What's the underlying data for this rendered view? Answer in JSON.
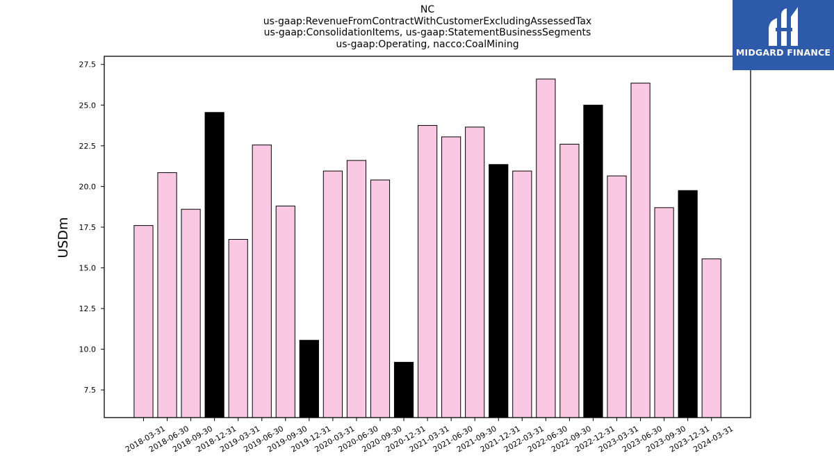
{
  "chart_data": {
    "type": "bar",
    "title_lines": [
      "NC",
      "us-gaap:RevenueFromContractWithCustomerExcludingAssessedTax",
      "us-gaap:ConsolidationItems, us-gaap:StatementBusinessSegments",
      "us-gaap:Operating, nacco:CoalMining"
    ],
    "ylabel": "USDm",
    "xlabel": "",
    "ylim": [
      5.8,
      28.0
    ],
    "yticks": [
      7.5,
      10.0,
      12.5,
      15.0,
      17.5,
      20.0,
      22.5,
      25.0,
      27.5
    ],
    "grid": false,
    "categories": [
      "2018-03-31",
      "2018-06-30",
      "2018-09-30",
      "2018-12-31",
      "2019-03-31",
      "2019-06-30",
      "2019-09-30",
      "2019-12-31",
      "2020-03-31",
      "2020-06-30",
      "2020-09-30",
      "2020-12-31",
      "2021-03-31",
      "2021-06-30",
      "2021-09-30",
      "2021-12-31",
      "2022-03-31",
      "2022-06-30",
      "2022-09-30",
      "2022-12-31",
      "2023-03-31",
      "2023-06-30",
      "2023-09-30",
      "2023-12-31",
      "2024-03-31"
    ],
    "values": [
      17.6,
      20.85,
      18.6,
      24.55,
      16.75,
      22.55,
      18.8,
      10.55,
      20.95,
      21.6,
      20.4,
      9.2,
      23.75,
      23.05,
      23.65,
      21.35,
      20.95,
      26.6,
      22.6,
      25.0,
      20.65,
      26.35,
      18.7,
      19.75,
      15.55
    ],
    "colors": {
      "quarter": "#fbc8e3",
      "year_end": "#000000",
      "edge": "#000000"
    },
    "bar_kinds": [
      "quarter",
      "quarter",
      "quarter",
      "year_end",
      "quarter",
      "quarter",
      "quarter",
      "year_end",
      "quarter",
      "quarter",
      "quarter",
      "year_end",
      "quarter",
      "quarter",
      "quarter",
      "year_end",
      "quarter",
      "quarter",
      "quarter",
      "year_end",
      "quarter",
      "quarter",
      "quarter",
      "year_end",
      "quarter"
    ]
  },
  "logo": {
    "text": "MIDGARD FINANCE",
    "background": "#2e5aac"
  }
}
